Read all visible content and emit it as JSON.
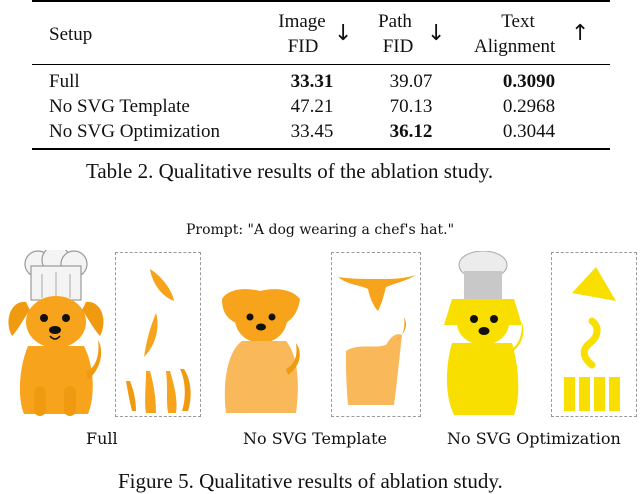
{
  "table": {
    "headers": {
      "setup": "Setup",
      "image_fid_line1": "Image",
      "image_fid_line2": "FID",
      "path_fid_line1": "Path",
      "path_fid_line2": "FID",
      "text_align_line1": "Text",
      "text_align_line2": "Alignment",
      "arrow_down": "↓",
      "arrow_up": "↑"
    },
    "rows": [
      {
        "setup": "Full",
        "image_fid": "33.31",
        "path_fid": "39.07",
        "text_alignment": "0.3090"
      },
      {
        "setup": "No SVG Template",
        "image_fid": "47.21",
        "path_fid": "70.13",
        "text_alignment": "0.2968"
      },
      {
        "setup": "No SVG Optimization",
        "image_fid": "33.45",
        "path_fid": "36.12",
        "text_alignment": "0.3044"
      }
    ],
    "caption": "Table 2. Qualitative results of the ablation study."
  },
  "figure": {
    "prompt": "Prompt: \"A dog wearing a chef's hat.\"",
    "labels": [
      "Full",
      "No SVG Template",
      "No SVG Optimization"
    ],
    "caption": "Figure 5. Qualitative results of ablation study.",
    "colors": {
      "orange": "#F7A31C",
      "light_orange": "#F9B85A",
      "yellow": "#F9DF00",
      "chef_hat_white": "#F4F4F4",
      "chef_hat_gray": "#C8C8C8"
    }
  }
}
